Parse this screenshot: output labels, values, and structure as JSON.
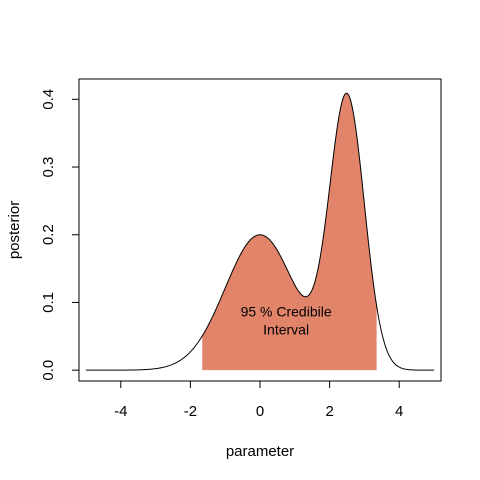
{
  "chart_data": {
    "type": "area",
    "title": "",
    "xlabel": "parameter",
    "ylabel": "posterior",
    "xlim": [
      -5.2,
      5.2
    ],
    "ylim": [
      -0.016,
      0.43
    ],
    "x_ticks": [
      -4,
      -2,
      0,
      2,
      4
    ],
    "y_ticks": [
      0.0,
      0.1,
      0.2,
      0.3,
      0.4
    ],
    "x_tick_labels": [
      "-4",
      "-2",
      "0",
      "2",
      "4"
    ],
    "y_tick_labels": [
      "0.0",
      "0.1",
      "0.2",
      "0.3",
      "0.4"
    ],
    "curve": {
      "x_range": [
        -5,
        5
      ],
      "components": [
        {
          "mean": 0.0,
          "sd": 1.0,
          "peak": 0.2
        },
        {
          "mean": 2.5,
          "sd": 0.5,
          "peak": 0.4
        }
      ]
    },
    "peaks": [
      {
        "x": 0.0,
        "y": 0.2
      },
      {
        "x": 2.5,
        "y": 0.41
      }
    ],
    "credible_interval": {
      "lower": -1.66,
      "upper": 3.35,
      "level": 95,
      "color": "#e2846a"
    },
    "annotation": {
      "line1": "95 % Credibile",
      "line2": "Interval",
      "x": 0.75,
      "y": 0.075
    },
    "grid": false,
    "legend": "none"
  }
}
